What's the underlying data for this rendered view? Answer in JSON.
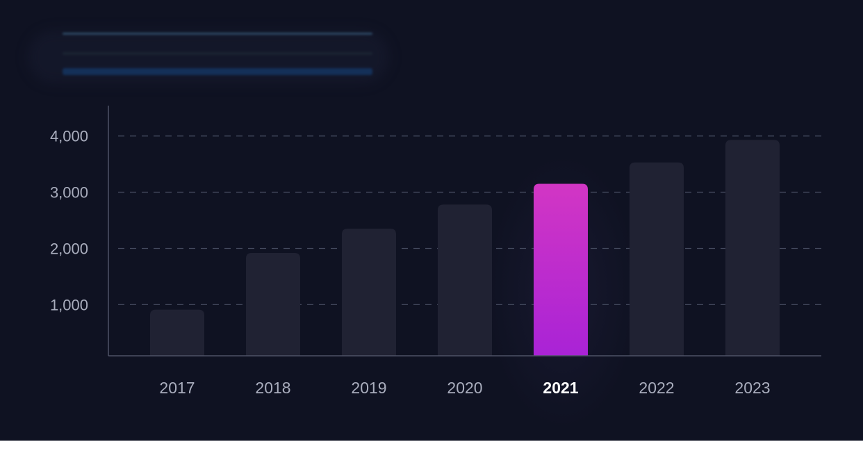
{
  "chart_data": {
    "type": "bar",
    "title": "",
    "xlabel": "",
    "ylabel": "",
    "categories": [
      "2017",
      "2018",
      "2019",
      "2020",
      "2021",
      "2022",
      "2023"
    ],
    "values": [
      910,
      1920,
      2350,
      2780,
      3150,
      3530,
      3930
    ],
    "highlight_index": 4,
    "ylim": [
      90,
      4540
    ],
    "yticks": [
      1000,
      2000,
      3000,
      4000
    ],
    "ytick_labels": [
      "1,000",
      "2,000",
      "3,000",
      "4,000"
    ],
    "grid": "horizontal dashed",
    "colors": {
      "background": "#0f1222",
      "bar": "#202233",
      "highlight_top": "#d236c4",
      "highlight_bottom": "#a923d6",
      "grid": "#444a5e",
      "axis": "#4e5366"
    }
  },
  "legend_placeholder": {
    "line_colors": [
      "#2e4a66",
      "#1b2533",
      "#143058"
    ]
  }
}
